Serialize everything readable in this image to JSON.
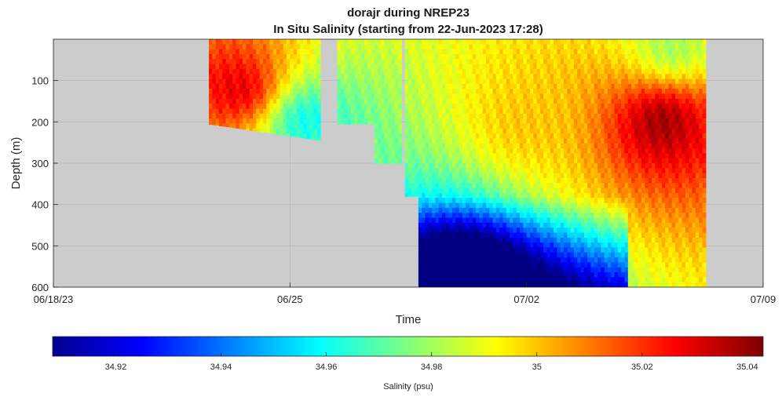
{
  "chart_data": {
    "type": "heatmap",
    "title": "dorajr during NREP23",
    "subtitle": "In Situ Salinity (starting from 22-Jun-2023 17:28)",
    "xlabel": "Time",
    "ylabel": "Depth (m)",
    "x_ticks": [
      "06/18/23",
      "06/25",
      "07/02",
      "07/09"
    ],
    "x_range_days": [
      0,
      21
    ],
    "y_ticks": [
      "100",
      "200",
      "300",
      "400",
      "500",
      "600"
    ],
    "y_tick_values": [
      100,
      200,
      300,
      400,
      500,
      600
    ],
    "ylim": [
      0,
      600
    ],
    "y_reversed": true,
    "grid": true,
    "colorbar": {
      "label": "Salinity (psu)",
      "range": [
        34.908,
        35.043
      ],
      "ticks": [
        34.92,
        34.94,
        34.96,
        34.98,
        35,
        35.02,
        35.04
      ],
      "tick_labels": [
        "34.92",
        "34.94",
        "34.96",
        "34.98",
        "35",
        "35.02",
        "35.04"
      ],
      "colormap": "jet"
    },
    "profile_segments": [
      {
        "t_start": 4.6,
        "t_end": 7.9,
        "max_depth_start": 205,
        "max_depth_end": 245
      },
      {
        "t_start": 8.4,
        "t_end": 9.5,
        "max_depth": 205
      },
      {
        "t_start": 9.5,
        "t_end": 10.3,
        "max_depth": 300
      },
      {
        "t_start": 10.4,
        "t_end": 10.8,
        "max_depth": 380
      },
      {
        "t_start": 10.8,
        "t_end": 19.3,
        "max_depth": 600
      }
    ],
    "salinity_features": [
      {
        "description": "high salinity core",
        "t": 5.5,
        "depth": 120,
        "salinity": 35.03
      },
      {
        "description": "fresher water",
        "t": 7.5,
        "depth": 200,
        "salinity": 34.96
      },
      {
        "description": "deep fresh layer",
        "t": 12,
        "depth": 550,
        "salinity": 34.92
      },
      {
        "description": "warm mid layer",
        "t": 14,
        "depth": 200,
        "salinity": 35.0
      },
      {
        "description": "saline eddy core",
        "t": 18,
        "depth": 200,
        "salinity": 35.04
      },
      {
        "description": "fresh surface patch",
        "t": 18.3,
        "depth": 20,
        "salinity": 34.98
      }
    ]
  }
}
